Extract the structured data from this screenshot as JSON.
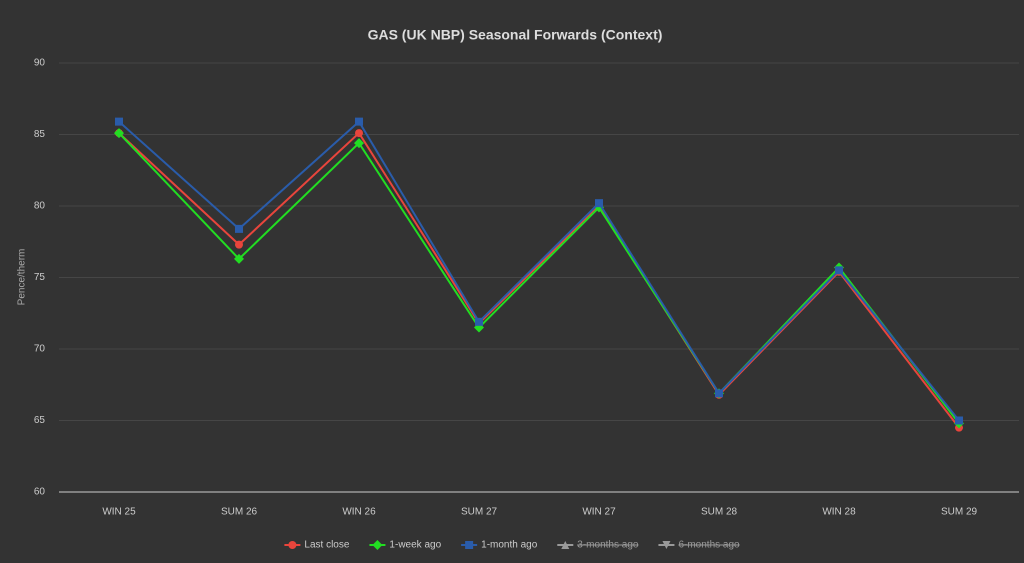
{
  "chart_data": {
    "type": "line",
    "title": "GAS (UK NBP) Seasonal Forwards (Context)",
    "y_label": "Pence/therm",
    "categories": [
      "WIN 25",
      "SUM 26",
      "WIN 26",
      "SUM 27",
      "WIN 27",
      "SUM 28",
      "WIN 28",
      "SUM 29"
    ],
    "series": [
      {
        "name": "Last close",
        "color": "#e8453c",
        "marker": "circle",
        "visible": true,
        "values": [
          85.1,
          77.3,
          85.1,
          71.8,
          80.0,
          66.8,
          75.4,
          64.5
        ]
      },
      {
        "name": "1-week ago",
        "color": "#22dd22",
        "marker": "diamond",
        "visible": true,
        "values": [
          85.1,
          76.3,
          84.4,
          71.5,
          79.9,
          66.9,
          75.7,
          64.8
        ]
      },
      {
        "name": "1-month ago",
        "color": "#2a5caa",
        "marker": "square",
        "visible": true,
        "values": [
          85.9,
          78.4,
          85.9,
          71.9,
          80.2,
          66.9,
          75.5,
          65.0
        ]
      },
      {
        "name": "3-months ago",
        "color": "#999999",
        "marker": "triangle",
        "visible": false,
        "values": [
          null,
          null,
          null,
          null,
          null,
          null,
          null,
          null
        ]
      },
      {
        "name": "6-months ago",
        "color": "#999999",
        "marker": "triangle-down",
        "visible": false,
        "values": [
          null,
          null,
          null,
          null,
          null,
          null,
          null,
          null
        ]
      }
    ],
    "ylim": [
      60,
      90
    ],
    "yticks": [
      60,
      65,
      70,
      75,
      80,
      85,
      90
    ],
    "grid": true,
    "legend": "bottom"
  }
}
